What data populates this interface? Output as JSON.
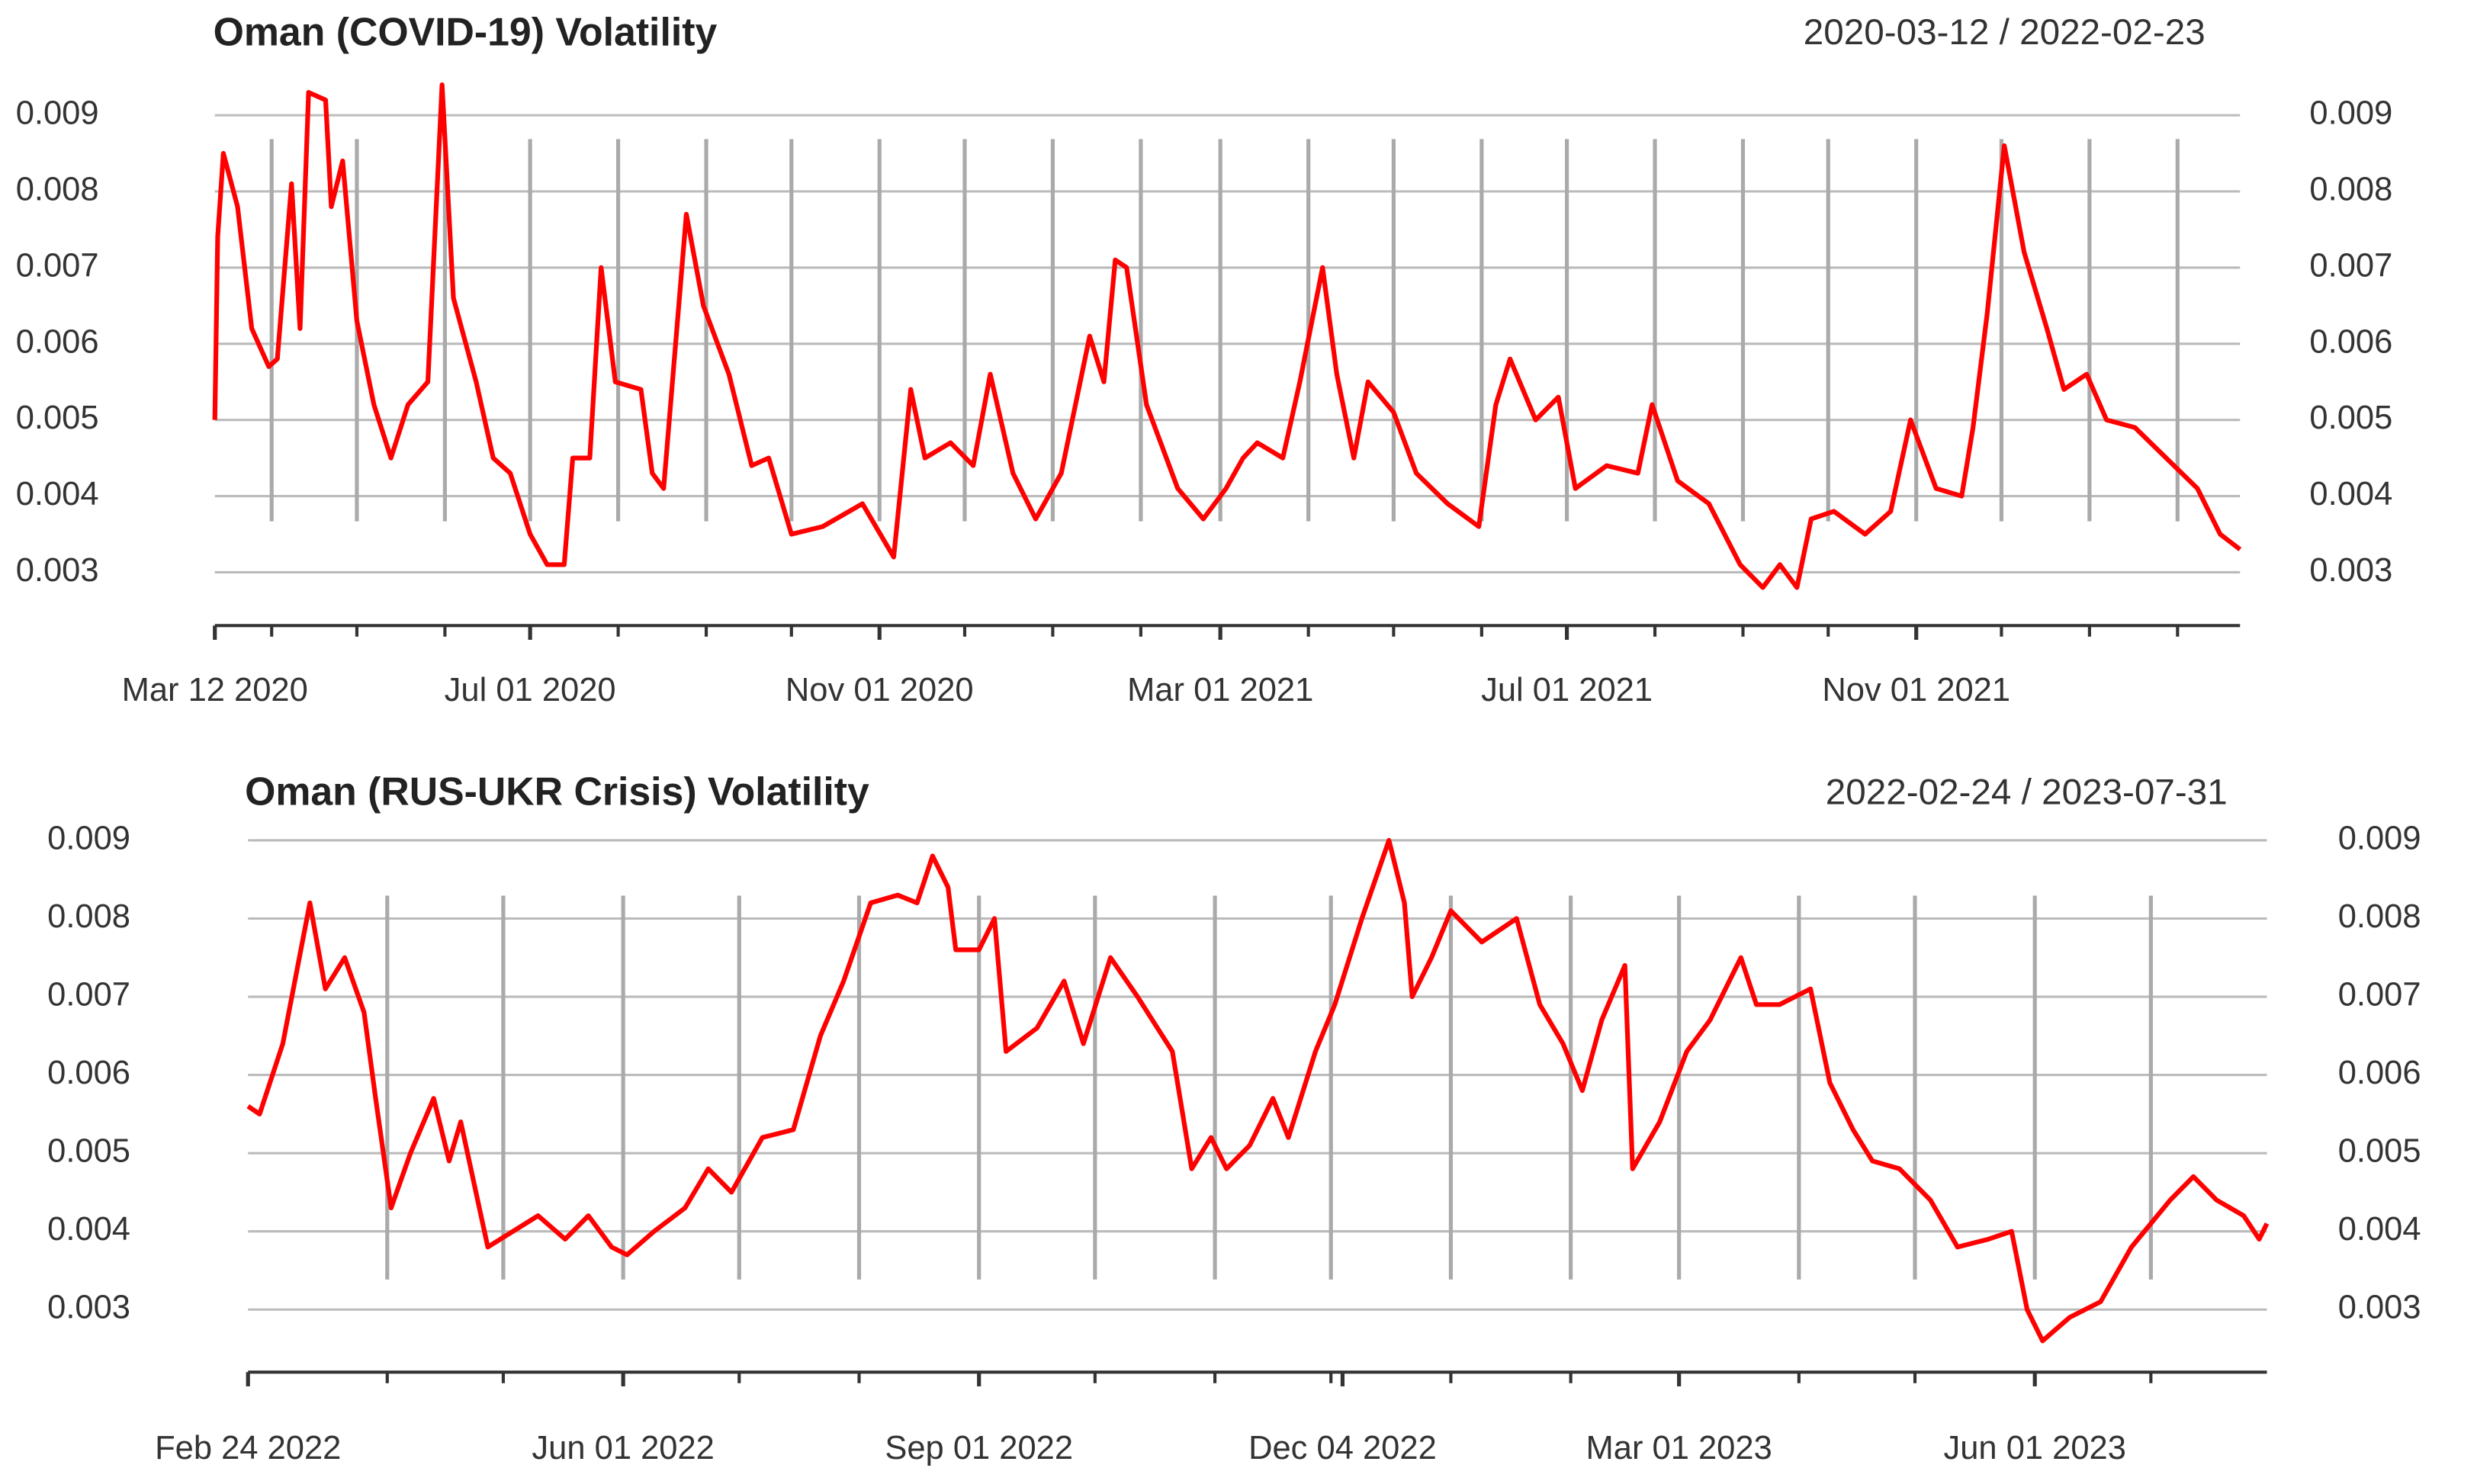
{
  "chart_data": [
    {
      "type": "line",
      "title": "Oman (COVID-19) Volatility",
      "date_range": "2020-03-12 / 2022-02-23",
      "color": "#ff0000",
      "grid": true,
      "xlim": [
        "2020-03-12",
        "2022-02-23"
      ],
      "ylim": [
        0.0023,
        0.0096
      ],
      "yticks": [
        0.003,
        0.004,
        0.005,
        0.006,
        0.007,
        0.008,
        0.009
      ],
      "xticks": [
        {
          "value": "2020-03-12",
          "label": "Mar 12 2020"
        },
        {
          "value": "2020-07-01",
          "label": "Jul 01 2020"
        },
        {
          "value": "2020-11-01",
          "label": "Nov 01 2020"
        },
        {
          "value": "2021-03-01",
          "label": "Mar 01 2021"
        },
        {
          "value": "2021-07-01",
          "label": "Jul 01 2021"
        },
        {
          "value": "2021-11-01",
          "label": "Nov 01 2021"
        }
      ],
      "xgrid": [
        "2020-04-01",
        "2020-05-01",
        "2020-06-01",
        "2020-07-01",
        "2020-08-01",
        "2020-09-01",
        "2020-10-01",
        "2020-11-01",
        "2020-12-01",
        "2021-01-01",
        "2021-02-01",
        "2021-03-01",
        "2021-04-01",
        "2021-05-01",
        "2021-06-01",
        "2021-07-01",
        "2021-08-01",
        "2021-09-01",
        "2021-10-01",
        "2021-11-01",
        "2021-12-01",
        "2022-01-01",
        "2022-02-01"
      ],
      "x": [
        "2020-03-12",
        "2020-03-13",
        "2020-03-15",
        "2020-03-20",
        "2020-03-25",
        "2020-03-31",
        "2020-04-03",
        "2020-04-08",
        "2020-04-11",
        "2020-04-14",
        "2020-04-20",
        "2020-04-22",
        "2020-04-26",
        "2020-05-01",
        "2020-05-07",
        "2020-05-13",
        "2020-05-19",
        "2020-05-26",
        "2020-05-31",
        "2020-06-04",
        "2020-06-12",
        "2020-06-18",
        "2020-06-24",
        "2020-07-01",
        "2020-07-07",
        "2020-07-13",
        "2020-07-16",
        "2020-07-22",
        "2020-07-26",
        "2020-07-31",
        "2020-08-09",
        "2020-08-13",
        "2020-08-17",
        "2020-08-25",
        "2020-08-31",
        "2020-09-09",
        "2020-09-17",
        "2020-09-23",
        "2020-10-01",
        "2020-10-12",
        "2020-10-26",
        "2020-11-06",
        "2020-11-12",
        "2020-11-17",
        "2020-11-26",
        "2020-12-04",
        "2020-12-10",
        "2020-12-18",
        "2020-12-26",
        "2021-01-04",
        "2021-01-14",
        "2021-01-19",
        "2021-01-23",
        "2021-01-27",
        "2021-02-03",
        "2021-02-14",
        "2021-02-23",
        "2021-03-03",
        "2021-03-09",
        "2021-03-14",
        "2021-03-23",
        "2021-03-29",
        "2021-04-06",
        "2021-04-11",
        "2021-04-17",
        "2021-04-22",
        "2021-05-01",
        "2021-05-09",
        "2021-05-20",
        "2021-05-31",
        "2021-06-06",
        "2021-06-11",
        "2021-06-20",
        "2021-06-28",
        "2021-07-04",
        "2021-07-15",
        "2021-07-26",
        "2021-07-31",
        "2021-08-09",
        "2021-08-20",
        "2021-08-31",
        "2021-09-08",
        "2021-09-14",
        "2021-09-20",
        "2021-09-25",
        "2021-10-03",
        "2021-10-14",
        "2021-10-23",
        "2021-10-30",
        "2021-11-08",
        "2021-11-17",
        "2021-11-21",
        "2021-11-26",
        "2021-12-02",
        "2021-12-09",
        "2021-12-17",
        "2021-12-23",
        "2021-12-31",
        "2022-01-07",
        "2022-01-17",
        "2022-01-28",
        "2022-02-08",
        "2022-02-16",
        "2022-02-23"
      ],
      "values": [
        0.005,
        0.0074,
        0.0085,
        0.0078,
        0.0062,
        0.0057,
        0.0058,
        0.0081,
        0.0062,
        0.0093,
        0.0092,
        0.0078,
        0.0084,
        0.0063,
        0.0052,
        0.0045,
        0.0052,
        0.0055,
        0.0094,
        0.0066,
        0.0055,
        0.0045,
        0.0043,
        0.0035,
        0.0031,
        0.0031,
        0.0045,
        0.0045,
        0.007,
        0.0055,
        0.0054,
        0.0043,
        0.0041,
        0.0077,
        0.0065,
        0.0056,
        0.0044,
        0.0045,
        0.0035,
        0.0036,
        0.0039,
        0.0032,
        0.0054,
        0.0045,
        0.0047,
        0.0044,
        0.0056,
        0.0043,
        0.0037,
        0.0043,
        0.0061,
        0.0055,
        0.0071,
        0.007,
        0.0052,
        0.0041,
        0.0037,
        0.0041,
        0.0045,
        0.0047,
        0.0045,
        0.0055,
        0.007,
        0.0056,
        0.0045,
        0.0055,
        0.0051,
        0.0043,
        0.0039,
        0.0036,
        0.0052,
        0.0058,
        0.005,
        0.0053,
        0.0041,
        0.0044,
        0.0043,
        0.0052,
        0.0042,
        0.0039,
        0.0031,
        0.0028,
        0.0031,
        0.0028,
        0.0037,
        0.0038,
        0.0035,
        0.0038,
        0.005,
        0.0041,
        0.004,
        0.0049,
        0.0064,
        0.0086,
        0.0072,
        0.0062,
        0.0054,
        0.0056,
        0.005,
        0.0049,
        0.0045,
        0.0041,
        0.0035,
        0.0033
      ]
    },
    {
      "type": "line",
      "title": "Oman (RUS-UKR Crisis) Volatility",
      "date_range": "2022-02-24 / 2023-07-31",
      "color": "#ff0000",
      "grid": true,
      "xlim": [
        "2022-02-24",
        "2023-07-31"
      ],
      "ylim": [
        0.0022,
        0.0091
      ],
      "yticks": [
        0.003,
        0.004,
        0.005,
        0.006,
        0.007,
        0.008,
        0.009
      ],
      "xticks": [
        {
          "value": "2022-02-24",
          "label": "Feb 24 2022"
        },
        {
          "value": "2022-06-01",
          "label": "Jun 01 2022"
        },
        {
          "value": "2022-09-01",
          "label": "Sep 01 2022"
        },
        {
          "value": "2022-12-04",
          "label": "Dec 04 2022"
        },
        {
          "value": "2023-03-01",
          "label": "Mar 01 2023"
        },
        {
          "value": "2023-06-01",
          "label": "Jun 01 2023"
        }
      ],
      "xgrid": [
        "2022-04-01",
        "2022-05-01",
        "2022-06-01",
        "2022-07-01",
        "2022-08-01",
        "2022-09-01",
        "2022-10-01",
        "2022-11-01",
        "2022-12-01",
        "2023-01-01",
        "2023-02-01",
        "2023-03-01",
        "2023-04-01",
        "2023-05-01",
        "2023-06-01",
        "2023-07-01"
      ],
      "x": [
        "2022-02-24",
        "2022-02-27",
        "2022-03-05",
        "2022-03-12",
        "2022-03-16",
        "2022-03-21",
        "2022-03-26",
        "2022-03-29",
        "2022-04-02",
        "2022-04-07",
        "2022-04-13",
        "2022-04-17",
        "2022-04-20",
        "2022-04-27",
        "2022-05-10",
        "2022-05-17",
        "2022-05-23",
        "2022-05-29",
        "2022-06-02",
        "2022-06-09",
        "2022-06-17",
        "2022-06-23",
        "2022-06-29",
        "2022-07-07",
        "2022-07-15",
        "2022-07-22",
        "2022-07-28",
        "2022-08-04",
        "2022-08-11",
        "2022-08-16",
        "2022-08-20",
        "2022-08-24",
        "2022-08-26",
        "2022-09-01",
        "2022-09-05",
        "2022-09-08",
        "2022-09-16",
        "2022-09-23",
        "2022-09-28",
        "2022-10-05",
        "2022-10-12",
        "2022-10-21",
        "2022-10-26",
        "2022-10-31",
        "2022-11-04",
        "2022-11-10",
        "2022-11-16",
        "2022-11-20",
        "2022-11-27",
        "2022-12-02",
        "2022-12-09",
        "2022-12-16",
        "2022-12-20",
        "2022-12-22",
        "2022-12-27",
        "2023-01-01",
        "2023-01-09",
        "2023-01-18",
        "2023-01-24",
        "2023-01-30",
        "2023-02-04",
        "2023-02-09",
        "2023-02-15",
        "2023-02-17",
        "2023-02-24",
        "2023-03-03",
        "2023-03-09",
        "2023-03-17",
        "2023-03-21",
        "2023-03-27",
        "2023-04-04",
        "2023-04-09",
        "2023-04-15",
        "2023-04-20",
        "2023-04-27",
        "2023-05-05",
        "2023-05-12",
        "2023-05-20",
        "2023-05-26",
        "2023-05-30",
        "2023-06-03",
        "2023-06-10",
        "2023-06-18",
        "2023-06-26",
        "2023-07-06",
        "2023-07-12",
        "2023-07-18",
        "2023-07-25",
        "2023-07-29",
        "2023-07-31"
      ],
      "values": [
        0.0056,
        0.0055,
        0.0064,
        0.0082,
        0.0071,
        0.0075,
        0.0068,
        0.0057,
        0.0043,
        0.005,
        0.0057,
        0.0049,
        0.0054,
        0.0038,
        0.0042,
        0.0039,
        0.0042,
        0.0038,
        0.0037,
        0.004,
        0.0043,
        0.0048,
        0.0045,
        0.0052,
        0.0053,
        0.0065,
        0.0072,
        0.0082,
        0.0083,
        0.0082,
        0.0088,
        0.0084,
        0.0076,
        0.0076,
        0.008,
        0.0063,
        0.0066,
        0.0072,
        0.0064,
        0.0075,
        0.007,
        0.0063,
        0.0048,
        0.0052,
        0.0048,
        0.0051,
        0.0057,
        0.0052,
        0.0063,
        0.0069,
        0.008,
        0.009,
        0.0082,
        0.007,
        0.0075,
        0.0081,
        0.0077,
        0.008,
        0.0069,
        0.0064,
        0.0058,
        0.0067,
        0.0074,
        0.0048,
        0.0054,
        0.0063,
        0.0067,
        0.0075,
        0.0069,
        0.0069,
        0.0071,
        0.0059,
        0.0053,
        0.0049,
        0.0048,
        0.0044,
        0.0038,
        0.0039,
        0.004,
        0.003,
        0.0026,
        0.0029,
        0.0031,
        0.0038,
        0.0044,
        0.0047,
        0.0044,
        0.0042,
        0.0039,
        0.0041
      ]
    }
  ]
}
